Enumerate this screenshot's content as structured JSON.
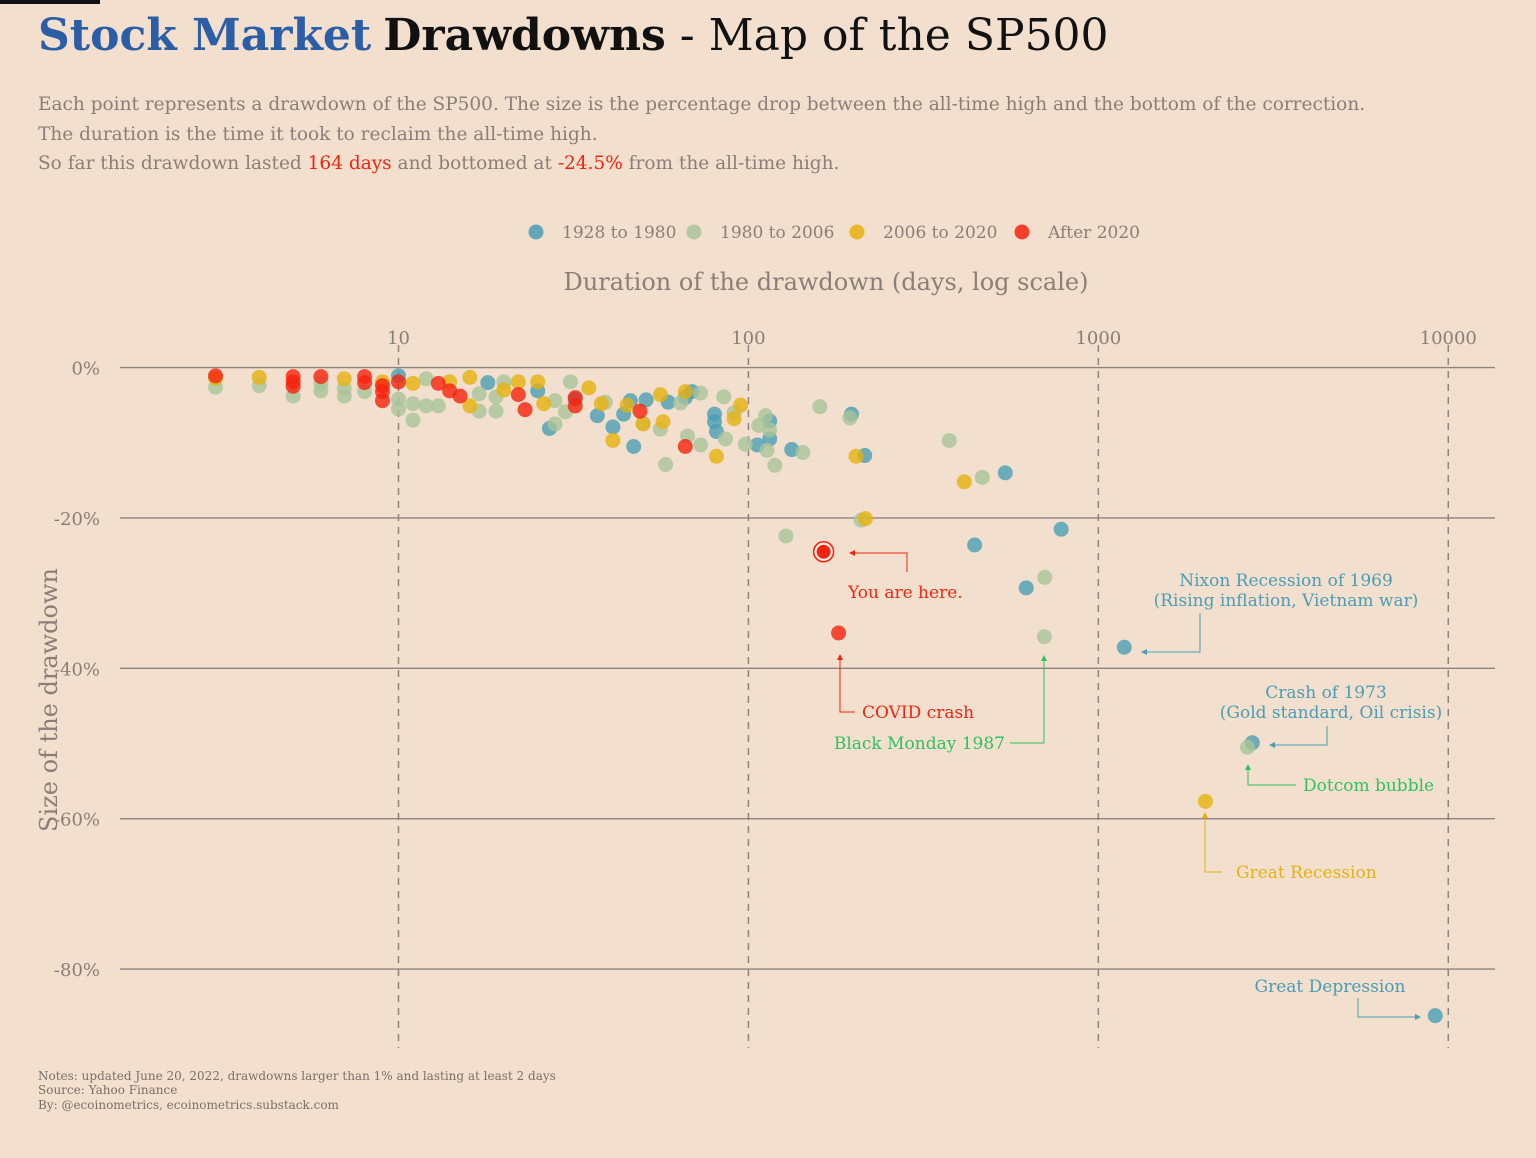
{
  "title": {
    "part1": "Stock Market",
    "part2": "Drawdowns",
    "part3": " - Map of the SP500"
  },
  "subtitle": {
    "line1": "Each point represents a drawdown of the SP500. The size is the percentage drop between the all-time high and the bottom of the correction.",
    "line2": "The duration is the time it took to reclaim the all-time high.",
    "line3_a": "So far this drawdown lasted ",
    "line3_days": "164 days",
    "line3_b": " and bottomed at ",
    "line3_pct": "-24.5%",
    "line3_c": " from the all-time high."
  },
  "notes": {
    "line1": "Notes: updated June 20, 2022, drawdowns larger than 1% and lasting at least 2 days",
    "line2": "Source: Yahoo Finance",
    "line3": "By: @ecoinometrics, ecoinometrics.substack.com"
  },
  "colors": {
    "background": "#f2dfce",
    "title_blue": "#2b5ea7",
    "highlight_red": "#f5230e",
    "green_annotation": "#2fc25f"
  },
  "chart_data": {
    "type": "scatter",
    "xlabel": "Duration of the drawdown (days, log scale)",
    "ylabel": "Size of the drawdown",
    "x_scale": "log",
    "x_axis_position": "top",
    "xlim": [
      1.6,
      13600
    ],
    "ylim": [
      -90.5,
      3
    ],
    "x_ticks": [
      "10",
      "100",
      "1000",
      "10000"
    ],
    "x_tick_values": [
      10,
      100,
      1000,
      10000
    ],
    "y_ticks": [
      "0%",
      "-20%",
      "-40%",
      "-60%",
      "-80%"
    ],
    "y_tick_values": [
      0,
      -20,
      -40,
      -60,
      -80
    ],
    "grid": "horizontal solid, vertical dashed",
    "legend_position": "top",
    "series": [
      {
        "name": "1928 to 1980",
        "color": "#4a9db5",
        "points": [
          [
            10,
            -1.1
          ],
          [
            18,
            -2.0
          ],
          [
            25,
            -3.1
          ],
          [
            27,
            -8.1
          ],
          [
            32,
            -4.2
          ],
          [
            37,
            -6.4
          ],
          [
            41,
            -7.9
          ],
          [
            44,
            -6.2
          ],
          [
            46,
            -4.4
          ],
          [
            47,
            -10.5
          ],
          [
            51,
            -4.3
          ],
          [
            59,
            -4.6
          ],
          [
            66,
            -4.0
          ],
          [
            69,
            -3.2
          ],
          [
            80,
            -6.2
          ],
          [
            80,
            -7.2
          ],
          [
            81,
            -8.5
          ],
          [
            106,
            -10.3
          ],
          [
            115,
            -9.5
          ],
          [
            115,
            -7.1
          ],
          [
            133,
            -10.9
          ],
          [
            197,
            -6.2
          ],
          [
            215,
            -11.7
          ],
          [
            443,
            -23.6
          ],
          [
            542,
            -14.0
          ],
          [
            622,
            -29.3
          ],
          [
            783,
            -21.5
          ],
          [
            1186,
            -37.2
          ],
          [
            2755,
            -49.9
          ],
          [
            9180,
            -86.2
          ]
        ]
      },
      {
        "name": "1980 to 2006",
        "color": "#a8c49a",
        "points": [
          [
            3,
            -2.6
          ],
          [
            4,
            -2.4
          ],
          [
            5,
            -3.8
          ],
          [
            6,
            -3.1
          ],
          [
            6,
            -2.1
          ],
          [
            7,
            -3.8
          ],
          [
            7,
            -2.8
          ],
          [
            8,
            -3.2
          ],
          [
            10,
            -5.5
          ],
          [
            10,
            -4.2
          ],
          [
            11,
            -7.0
          ],
          [
            11,
            -4.8
          ],
          [
            12,
            -1.5
          ],
          [
            12,
            -5.1
          ],
          [
            13,
            -5.1
          ],
          [
            17,
            -3.5
          ],
          [
            17,
            -5.8
          ],
          [
            19,
            -3.9
          ],
          [
            19,
            -5.8
          ],
          [
            20,
            -1.9
          ],
          [
            28,
            -4.4
          ],
          [
            28,
            -7.5
          ],
          [
            30,
            -5.9
          ],
          [
            31,
            -1.9
          ],
          [
            39,
            -4.6
          ],
          [
            50,
            -7.4
          ],
          [
            56,
            -8.2
          ],
          [
            58,
            -12.9
          ],
          [
            64,
            -4.7
          ],
          [
            67,
            -9.1
          ],
          [
            73,
            -3.4
          ],
          [
            73,
            -10.3
          ],
          [
            85,
            -3.9
          ],
          [
            86,
            -9.5
          ],
          [
            91,
            -6.0
          ],
          [
            98,
            -10.2
          ],
          [
            107,
            -7.7
          ],
          [
            112,
            -6.4
          ],
          [
            113,
            -11.0
          ],
          [
            115,
            -8.3
          ],
          [
            119,
            -13.0
          ],
          [
            128,
            -22.4
          ],
          [
            143,
            -11.3
          ],
          [
            160,
            -5.2
          ],
          [
            195,
            -6.7
          ],
          [
            210,
            -20.3
          ],
          [
            375,
            -9.7
          ],
          [
            466,
            -14.6
          ],
          [
            701,
            -35.8
          ],
          [
            703,
            -27.9
          ],
          [
            2668,
            -50.5
          ]
        ]
      },
      {
        "name": "2006 to 2020",
        "color": "#e6b10f",
        "points": [
          [
            3,
            -1.4
          ],
          [
            4,
            -1.3
          ],
          [
            7,
            -1.5
          ],
          [
            9,
            -1.9
          ],
          [
            11,
            -2.1
          ],
          [
            14,
            -1.9
          ],
          [
            16,
            -1.3
          ],
          [
            16,
            -5.1
          ],
          [
            20,
            -3.0
          ],
          [
            22,
            -1.9
          ],
          [
            25,
            -1.9
          ],
          [
            26,
            -4.8
          ],
          [
            35,
            -2.7
          ],
          [
            38,
            -4.8
          ],
          [
            41,
            -9.7
          ],
          [
            45,
            -5.0
          ],
          [
            50,
            -7.5
          ],
          [
            56,
            -3.6
          ],
          [
            57,
            -7.2
          ],
          [
            66,
            -3.2
          ],
          [
            81,
            -11.8
          ],
          [
            91,
            -6.8
          ],
          [
            95,
            -5.0
          ],
          [
            203,
            -11.8
          ],
          [
            216,
            -20.1
          ],
          [
            414,
            -15.2
          ],
          [
            2023,
            -57.7
          ]
        ]
      },
      {
        "name": "After 2020",
        "color": "#f5230e",
        "points": [
          [
            3,
            -1.1
          ],
          [
            5,
            -1.2
          ],
          [
            5,
            -1.9
          ],
          [
            5,
            -2.5
          ],
          [
            6,
            -1.2
          ],
          [
            8,
            -1.2
          ],
          [
            8,
            -2.0
          ],
          [
            9,
            -2.4
          ],
          [
            9,
            -3.2
          ],
          [
            9,
            -4.4
          ],
          [
            10,
            -1.9
          ],
          [
            13,
            -2.1
          ],
          [
            14,
            -3.1
          ],
          [
            15,
            -3.8
          ],
          [
            22,
            -3.6
          ],
          [
            23,
            -5.6
          ],
          [
            32,
            -4.0
          ],
          [
            32,
            -5.1
          ],
          [
            49,
            -5.8
          ],
          [
            66,
            -10.5
          ],
          [
            164,
            -24.5
          ],
          [
            181,
            -35.3
          ]
        ]
      }
    ],
    "current_point": [
      164,
      -24.5
    ],
    "annotations": {
      "you_are_here": "You are here.",
      "covid": "COVID crash",
      "black_monday": "Black Monday 1987",
      "nixon_1": "Nixon Recession of 1969",
      "nixon_2": "(Rising inflation, Vietnam war)",
      "crash73_1": "Crash of 1973",
      "crash73_2": "(Gold standard, Oil crisis)",
      "dotcom": "Dotcom bubble",
      "great_recession": "Great Recession",
      "great_depression": "Great Depression"
    }
  }
}
